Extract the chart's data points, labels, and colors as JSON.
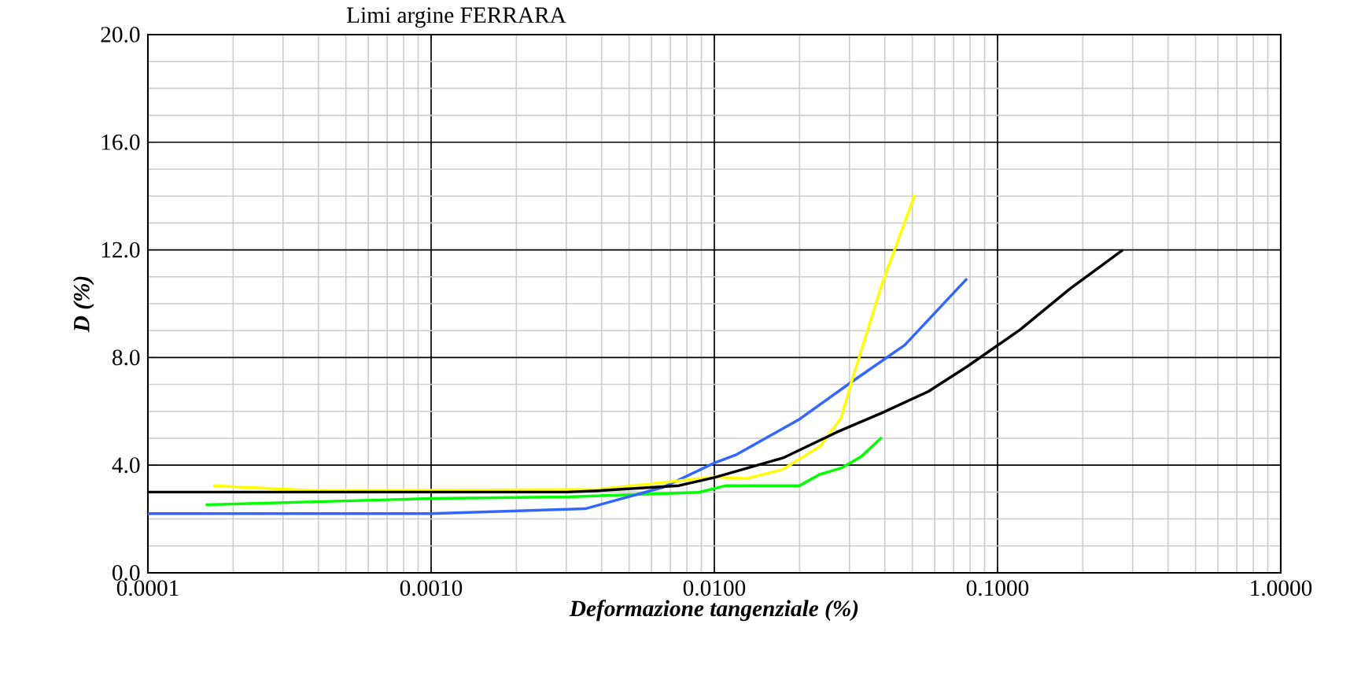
{
  "chart_data": {
    "type": "line",
    "title": "Limi argine FERRARA",
    "xlabel": "Deformazione tangenziale (%)",
    "ylabel": "D (%)",
    "log": "x",
    "grid": true,
    "xlim": [
      0.0001,
      1
    ],
    "ylim": [
      0,
      20
    ],
    "xticks": [
      {
        "value": 0.0001,
        "label": "0.0001"
      },
      {
        "value": 0.001,
        "label": "0.0010"
      },
      {
        "value": 0.01,
        "label": "0.0100"
      },
      {
        "value": 0.1,
        "label": "0.1000"
      },
      {
        "value": 1,
        "label": "1.0000"
      }
    ],
    "yticks": [
      {
        "value": 0,
        "label": "0.0"
      },
      {
        "value": 4,
        "label": "4.0"
      },
      {
        "value": 8,
        "label": "8.0"
      },
      {
        "value": 12,
        "label": "12.0"
      },
      {
        "value": 16,
        "label": "16.0"
      },
      {
        "value": 20,
        "label": "20.0"
      }
    ],
    "series": [
      {
        "color": "#00ff00",
        "x": [
          0.00016,
          0.001,
          0.003,
          0.0088,
          0.011,
          0.02,
          0.0236,
          0.028,
          0.033,
          0.039
        ],
        "values": [
          2.53,
          2.76,
          2.82,
          2.99,
          3.24,
          3.24,
          3.66,
          3.89,
          4.32,
          5.03
        ]
      },
      {
        "color": "#3366ff",
        "x": [
          0.0001,
          0.001,
          0.0035,
          0.0066,
          0.01,
          0.0119,
          0.02,
          0.0305,
          0.047,
          0.078
        ],
        "values": [
          2.2,
          2.2,
          2.38,
          3.18,
          4.08,
          4.38,
          5.71,
          7.09,
          8.46,
          10.93
        ]
      },
      {
        "color": "#ffff00",
        "x": [
          0.00017,
          0.0004,
          0.0039,
          0.01,
          0.013,
          0.0175,
          0.0236,
          0.028,
          0.0305,
          0.039,
          0.051
        ],
        "values": [
          3.24,
          3.05,
          3.1,
          3.56,
          3.5,
          3.85,
          4.7,
          5.75,
          7.09,
          10.7,
          14.04
        ]
      },
      {
        "color": "#000000",
        "x": [
          0.0001,
          0.003,
          0.0039,
          0.0075,
          0.01,
          0.0175,
          0.027,
          0.039,
          0.057,
          0.078,
          0.12,
          0.18,
          0.277
        ],
        "values": [
          3.0,
          3.0,
          3.05,
          3.24,
          3.54,
          4.27,
          5.22,
          5.94,
          6.74,
          7.66,
          9.03,
          10.55,
          12.0
        ]
      }
    ]
  }
}
